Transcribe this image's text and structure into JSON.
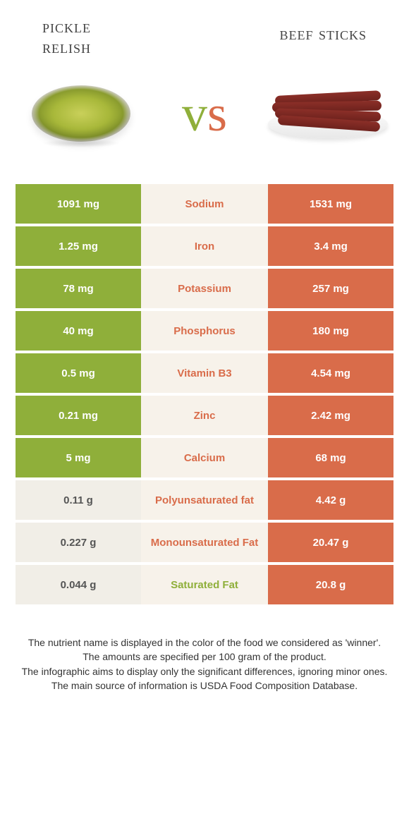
{
  "header": {
    "left_title_line1": "pickle",
    "left_title_line2": "relish",
    "right_title": "beef sticks"
  },
  "vs": {
    "v": "v",
    "s": "s"
  },
  "colors": {
    "green": "#8faf3a",
    "orange": "#d96c4a",
    "mid_bg": "#f7f2ea",
    "grey_bg": "#f1eee7"
  },
  "rows": [
    {
      "left": "1091 mg",
      "label": "Sodium",
      "right": "1531 mg",
      "left_style": "green-bg",
      "label_style": "orange-text",
      "right_style": "orange-bg"
    },
    {
      "left": "1.25 mg",
      "label": "Iron",
      "right": "3.4 mg",
      "left_style": "green-bg",
      "label_style": "orange-text",
      "right_style": "orange-bg"
    },
    {
      "left": "78 mg",
      "label": "Potassium",
      "right": "257 mg",
      "left_style": "green-bg",
      "label_style": "orange-text",
      "right_style": "orange-bg"
    },
    {
      "left": "40 mg",
      "label": "Phosphorus",
      "right": "180 mg",
      "left_style": "green-bg",
      "label_style": "orange-text",
      "right_style": "orange-bg"
    },
    {
      "left": "0.5 mg",
      "label": "Vitamin B3",
      "right": "4.54 mg",
      "left_style": "green-bg",
      "label_style": "orange-text",
      "right_style": "orange-bg"
    },
    {
      "left": "0.21 mg",
      "label": "Zinc",
      "right": "2.42 mg",
      "left_style": "green-bg",
      "label_style": "orange-text",
      "right_style": "orange-bg"
    },
    {
      "left": "5 mg",
      "label": "Calcium",
      "right": "68 mg",
      "left_style": "green-bg",
      "label_style": "orange-text",
      "right_style": "orange-bg"
    },
    {
      "left": "0.11 g",
      "label": "Polyunsaturated fat",
      "right": "4.42 g",
      "left_style": "grey-bg",
      "label_style": "orange-text",
      "right_style": "orange-bg"
    },
    {
      "left": "0.227 g",
      "label": "Monounsaturated Fat",
      "right": "20.47 g",
      "left_style": "grey-bg",
      "label_style": "orange-text",
      "right_style": "orange-bg"
    },
    {
      "left": "0.044 g",
      "label": "Saturated Fat",
      "right": "20.8 g",
      "left_style": "grey-bg",
      "label_style": "green-text",
      "right_style": "orange-bg"
    }
  ],
  "footer": {
    "line1": "The nutrient name is displayed in the color of the food we considered as 'winner'.",
    "line2": "The amounts are specified per 100 gram of the product.",
    "line3": "The infographic aims to display only the significant differences, ignoring minor ones.",
    "line4": "The main source of information is USDA Food Composition Database."
  }
}
